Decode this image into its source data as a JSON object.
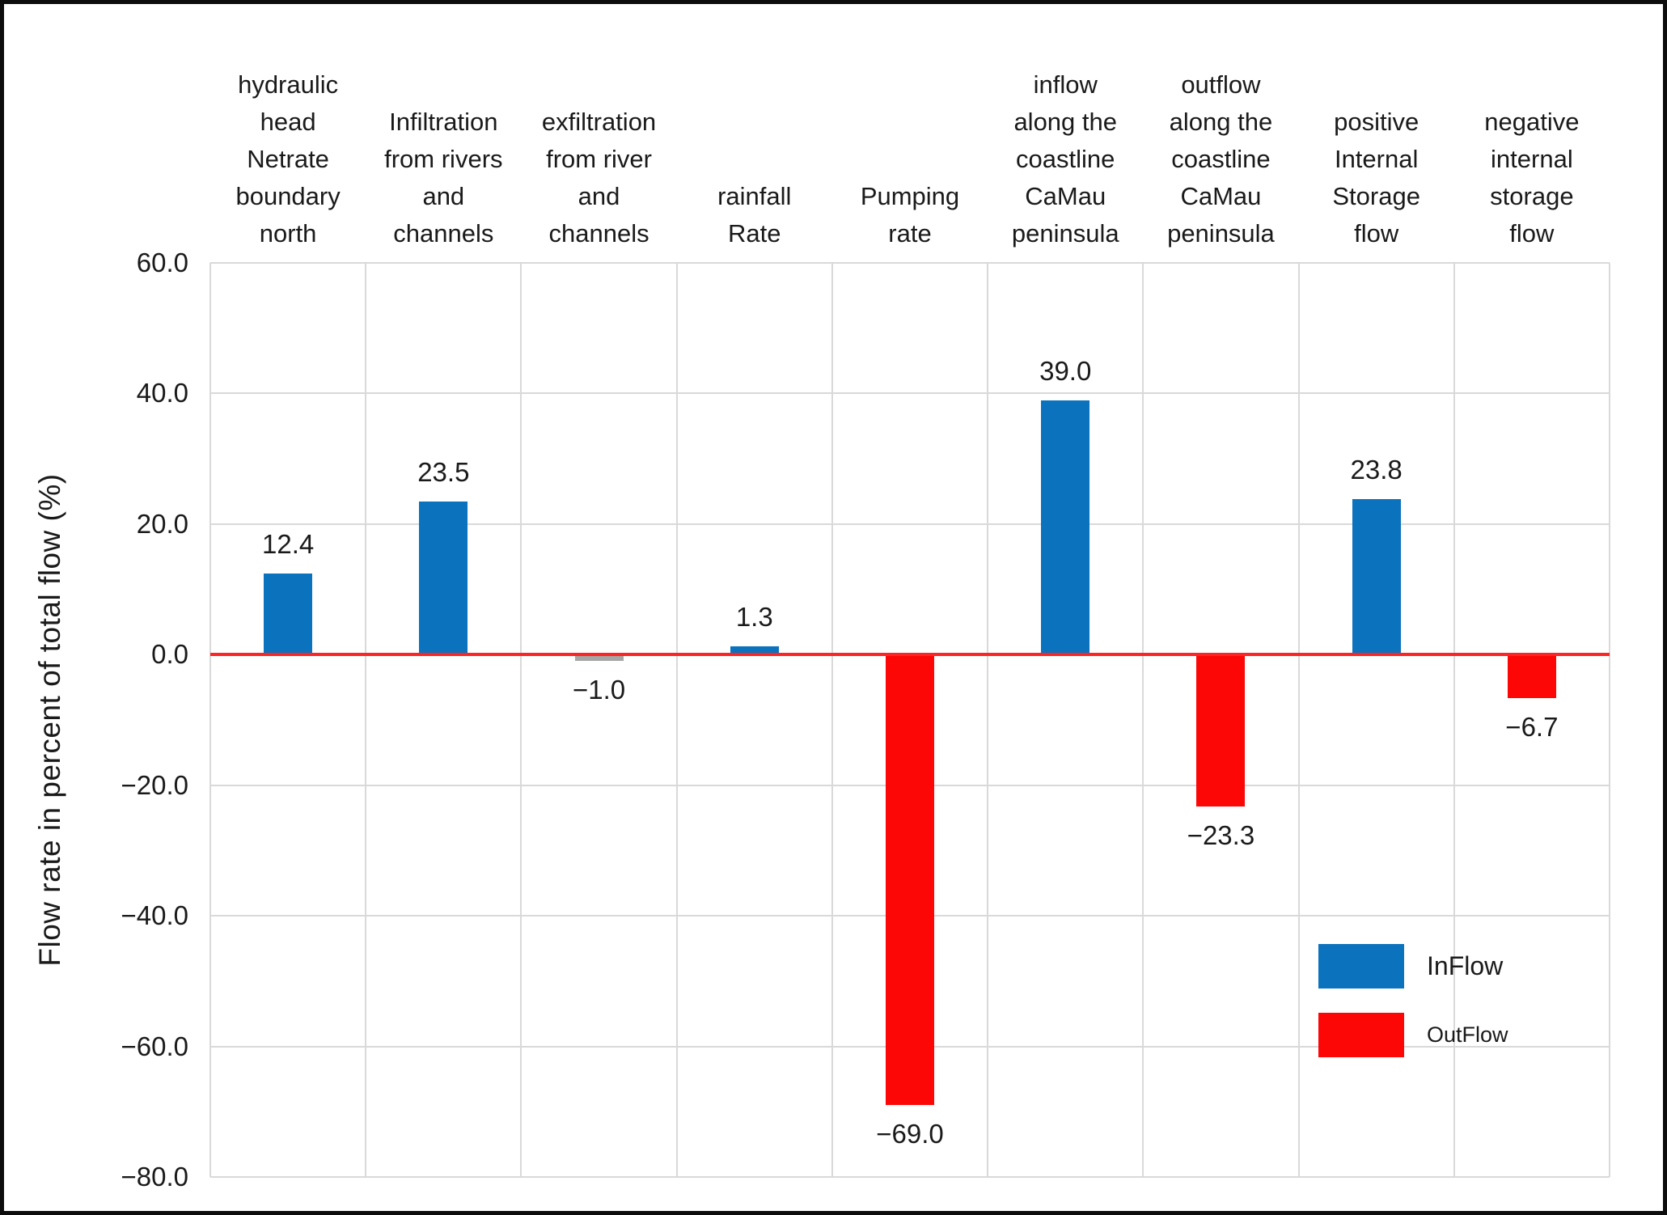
{
  "chart_data": {
    "type": "bar",
    "title": "",
    "xlabel": "",
    "ylabel": "Flow rate in percent of total flow (%)",
    "ylim": [
      -80,
      60
    ],
    "ytick_step": 20,
    "grid": true,
    "legend_position": "bottom-right",
    "categories": [
      "hydraulic\nhead\nNetrate\nboundary\nnorth",
      "Infiltration\nfrom rivers\nand\nchannels",
      "exfiltration\nfrom river\nand\nchannels",
      "rainfall\nRate",
      "Pumping\nrate",
      "inflow\nalong the\ncoastline\nCaMau\npeninsula",
      "outflow\nalong the\ncoastline\nCaMau\npeninsula",
      "positive\nInternal\nStorage\nflow",
      "negative\ninternal\nstorage\nflow"
    ],
    "values": [
      12.4,
      23.5,
      -1.0,
      1.3,
      -69.0,
      39.0,
      -23.3,
      23.8,
      -6.7
    ],
    "value_labels": [
      "12.4",
      "23.5",
      "−1.0",
      "1.3",
      "−69.0",
      "39.0",
      "−23.3",
      "23.8",
      "−6.7"
    ],
    "bar_colors": [
      "#0B72BE",
      "#0B72BE",
      "#A6A6A6",
      "#0B72BE",
      "#FC0606",
      "#0B72BE",
      "#FC0606",
      "#0B72BE",
      "#FC0606"
    ],
    "yticks": [
      {
        "label": "60.0",
        "value": 60
      },
      {
        "label": "40.0",
        "value": 40
      },
      {
        "label": "20.0",
        "value": 20
      },
      {
        "label": "0.0",
        "value": 0
      },
      {
        "label": "−20.0",
        "value": -20
      },
      {
        "label": "−40.0",
        "value": -40
      },
      {
        "label": "−60.0",
        "value": -60
      },
      {
        "label": "−80.0",
        "value": -80
      }
    ],
    "series": [
      {
        "name": "InFlow",
        "color": "#0B72BE"
      },
      {
        "name": "OutFlow",
        "color": "#FC0606"
      }
    ],
    "colors": {
      "gridline": "#d9d9d9",
      "zero_line": "#fb2525",
      "inflow": "#0B72BE",
      "outflow": "#FC0606",
      "neutral": "#A6A6A6"
    }
  }
}
